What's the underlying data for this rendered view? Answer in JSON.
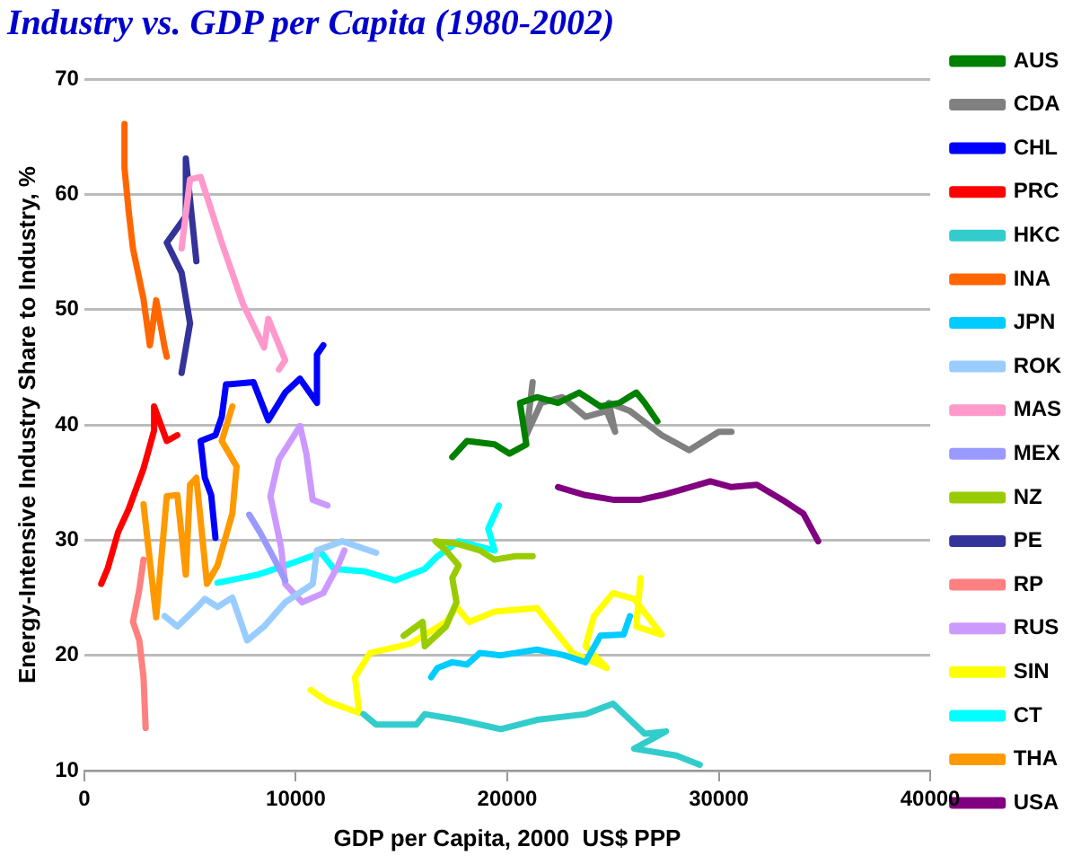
{
  "chart_data": {
    "type": "line",
    "title": "Industry vs. GDP per Capita (1980-2002)",
    "xlabel": "GDP per Capita, 2000  US$ PPP",
    "ylabel": "Energy-Intensive Industry Share to Industry, %",
    "xlim": [
      0,
      40000
    ],
    "xticks": [
      0,
      10000,
      20000,
      30000,
      40000
    ],
    "ylim": [
      10,
      70
    ],
    "yticks": [
      10,
      20,
      30,
      40,
      50,
      60,
      70
    ],
    "grid": "y",
    "legend": "right",
    "marker": "none",
    "line_style": "solid",
    "series": [
      {
        "name": "AUS",
        "color": "#008000",
        "x": [
          17400,
          18100,
          19400,
          20100,
          20900,
          20600,
          21400,
          22400,
          23400,
          24400,
          25300,
          26100,
          26500,
          27100
        ],
        "values": [
          37.2,
          38.6,
          38.3,
          37.5,
          38.3,
          41.9,
          42.4,
          41.9,
          42.8,
          41.6,
          41.9,
          42.8,
          41.9,
          40.3
        ]
      },
      {
        "name": "CDA",
        "color": "#808080",
        "x": [
          21200,
          20900,
          21600,
          22600,
          23700,
          24700,
          25100,
          24800,
          25800,
          27300,
          28600,
          30000,
          30600
        ],
        "values": [
          43.7,
          39.1,
          41.9,
          42.4,
          40.7,
          41.2,
          39.4,
          41.9,
          41.2,
          39.1,
          37.8,
          39.4,
          39.4
        ]
      },
      {
        "name": "CHL",
        "color": "#0000ff",
        "x": [
          6200,
          6000,
          5700,
          5500,
          6200,
          6500,
          6700,
          8000,
          8700,
          9500,
          10200,
          11000,
          11000,
          11300
        ],
        "values": [
          30.2,
          33.9,
          35.4,
          38.6,
          39.1,
          40.7,
          43.5,
          43.7,
          40.4,
          42.8,
          44.0,
          41.9,
          46.1,
          46.9
        ]
      },
      {
        "name": "PRC",
        "color": "#ff0000",
        "x": [
          800,
          1100,
          1600,
          2100,
          2800,
          3300,
          3300,
          3900,
          4400
        ],
        "values": [
          26.2,
          27.5,
          30.7,
          32.7,
          36.2,
          39.5,
          41.6,
          38.6,
          39.1
        ]
      },
      {
        "name": "HKC",
        "color": "#33cccc",
        "x": [
          13200,
          13800,
          15700,
          16100,
          17700,
          19700,
          21400,
          23700,
          25000,
          26500,
          27500,
          26000,
          28000,
          29100
        ],
        "values": [
          14.9,
          14.0,
          14.0,
          14.9,
          14.4,
          13.6,
          14.4,
          14.9,
          15.8,
          13.2,
          13.4,
          11.9,
          11.3,
          10.5
        ]
      },
      {
        "name": "INA",
        "color": "#ff6600",
        "x": [
          1900,
          1900,
          2100,
          2300,
          2800,
          3100,
          3400,
          3800,
          3900
        ],
        "values": [
          66.1,
          62.3,
          58.5,
          55.3,
          50.9,
          46.9,
          50.8,
          46.7,
          45.9
        ]
      },
      {
        "name": "JPN",
        "color": "#00ccff",
        "x": [
          16400,
          16700,
          17400,
          18100,
          18700,
          19700,
          21400,
          22700,
          23700,
          24400,
          25500,
          25800
        ],
        "values": [
          18.1,
          18.9,
          19.4,
          19.2,
          20.2,
          20.0,
          20.5,
          20.0,
          19.4,
          21.7,
          21.8,
          23.4
        ]
      },
      {
        "name": "ROK",
        "color": "#99ccff",
        "x": [
          3800,
          4400,
          5300,
          5700,
          6300,
          7000,
          7700,
          8500,
          9500,
          10800,
          11000,
          12200,
          13800
        ],
        "values": [
          23.4,
          22.5,
          24.1,
          24.9,
          24.2,
          25.0,
          21.3,
          22.5,
          24.6,
          26.2,
          29.1,
          29.9,
          28.9
        ]
      },
      {
        "name": "MAS",
        "color": "#ff99cc",
        "x": [
          4600,
          5000,
          5500,
          6500,
          7500,
          8500,
          8700,
          9500,
          9200
        ],
        "values": [
          55.3,
          61.3,
          61.5,
          55.8,
          50.5,
          46.7,
          49.2,
          45.6,
          44.8
        ]
      },
      {
        "name": "MEX",
        "color": "#9999ff",
        "x": [
          7800,
          8300,
          9000,
          9500
        ],
        "values": [
          32.2,
          30.7,
          28.3,
          26.5
        ]
      },
      {
        "name": "NZ",
        "color": "#99cc00",
        "x": [
          15100,
          16000,
          16100,
          17100,
          17600,
          17400,
          17700,
          17100,
          16600,
          17600,
          18700,
          19400,
          20400,
          21200
        ],
        "values": [
          21.7,
          22.9,
          20.8,
          22.5,
          24.6,
          26.7,
          27.8,
          29.1,
          29.9,
          29.7,
          29.1,
          28.3,
          28.6,
          28.6
        ]
      },
      {
        "name": "PE",
        "color": "#333399",
        "x": [
          4600,
          5000,
          4600,
          3900,
          4800,
          4800,
          5300
        ],
        "values": [
          44.5,
          48.8,
          53.2,
          55.8,
          58.1,
          63.1,
          54.2
        ]
      },
      {
        "name": "RP",
        "color": "#ff8080",
        "x": [
          2800,
          2600,
          2300,
          2600,
          2800,
          2900
        ],
        "values": [
          28.3,
          25.7,
          22.9,
          21.3,
          18.1,
          13.7
        ]
      },
      {
        "name": "RUS",
        "color": "#cc99ff",
        "x": [
          11500,
          10800,
          10500,
          10200,
          9200,
          8800,
          9300,
          9500,
          10300,
          11300,
          12000,
          12300
        ],
        "values": [
          33.0,
          33.5,
          37.5,
          39.9,
          37.0,
          33.8,
          29.4,
          26.2,
          24.6,
          25.4,
          27.8,
          29.1
        ]
      },
      {
        "name": "SIN",
        "color": "#ffff00",
        "x": [
          10700,
          11500,
          13000,
          12800,
          13500,
          15400,
          17100,
          17600,
          18200,
          19400,
          21400,
          22400,
          23100,
          24700,
          23700,
          24100,
          25000,
          26000,
          27300,
          26100,
          26300
        ],
        "values": [
          17.0,
          16.0,
          15.0,
          18.1,
          20.2,
          21.0,
          22.9,
          24.2,
          22.9,
          23.8,
          24.1,
          21.8,
          20.2,
          18.9,
          20.8,
          23.4,
          25.4,
          24.9,
          21.8,
          22.5,
          26.7
        ]
      },
      {
        "name": "CT",
        "color": "#00ffff",
        "x": [
          6300,
          8200,
          9500,
          11200,
          11800,
          13200,
          14700,
          16100,
          16700,
          17700,
          19400,
          19100,
          19600
        ],
        "values": [
          26.3,
          27.0,
          27.8,
          28.9,
          27.5,
          27.3,
          26.5,
          27.5,
          28.6,
          29.9,
          29.1,
          31.0,
          33.0
        ]
      },
      {
        "name": "THA",
        "color": "#ff9900",
        "x": [
          2800,
          3400,
          3900,
          4400,
          4800,
          5000,
          5300,
          5800,
          6300,
          7000,
          7200,
          6500,
          7000
        ],
        "values": [
          33.1,
          23.3,
          33.8,
          33.9,
          27.0,
          34.8,
          35.4,
          26.2,
          27.8,
          32.3,
          36.4,
          38.6,
          41.6
        ]
      },
      {
        "name": "USA",
        "color": "#800080",
        "x": [
          22400,
          23700,
          25000,
          26300,
          27300,
          28100,
          29600,
          30600,
          31800,
          33000,
          34000,
          34700
        ],
        "values": [
          34.6,
          33.9,
          33.5,
          33.5,
          33.9,
          34.3,
          35.1,
          34.6,
          34.8,
          33.5,
          32.3,
          29.9
        ]
      }
    ]
  }
}
